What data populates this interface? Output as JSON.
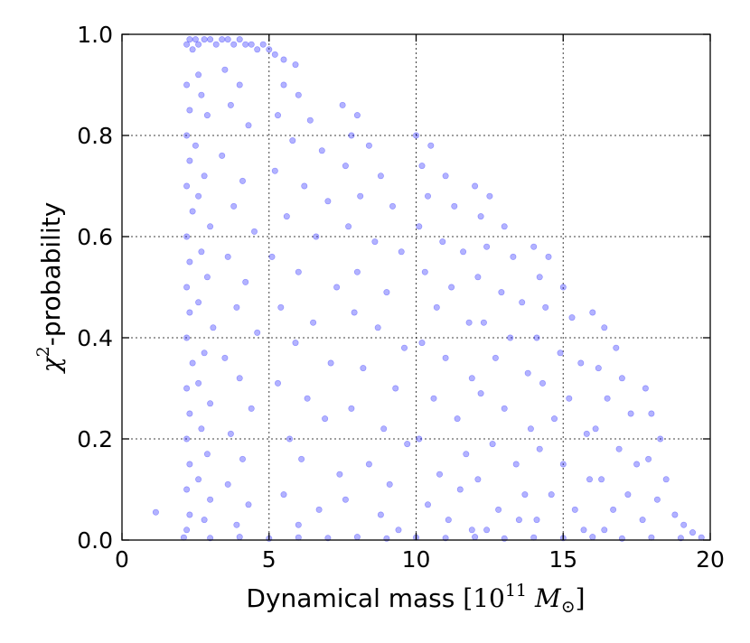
{
  "chart_data": {
    "type": "scatter",
    "title": "",
    "xlabel": {
      "prefix": "Dynamical mass ",
      "open_bracket": "[",
      "base": "10",
      "exponent": "11",
      "symbol": "M",
      "subscript": "⊙",
      "close_bracket": "]"
    },
    "ylabel": {
      "symbol": "χ",
      "superscript": "2",
      "suffix": "-probability"
    },
    "xlim": [
      0,
      20
    ],
    "ylim": [
      0.0,
      1.0
    ],
    "x_ticks": [
      "0",
      "5",
      "10",
      "15",
      "20"
    ],
    "y_ticks": [
      "0.0",
      "0.2",
      "0.4",
      "0.6",
      "0.8",
      "1.0"
    ],
    "x_tick_values": [
      0,
      5,
      10,
      15,
      20
    ],
    "y_tick_values": [
      0.0,
      0.2,
      0.4,
      0.6,
      0.8,
      1.0
    ],
    "grid": true,
    "marker_color": "#0000ff",
    "points": [
      [
        1.15,
        0.055
      ],
      [
        2.2,
        0.98
      ],
      [
        2.3,
        0.99
      ],
      [
        2.4,
        0.97
      ],
      [
        2.5,
        0.99
      ],
      [
        2.6,
        0.98
      ],
      [
        2.8,
        0.99
      ],
      [
        3.0,
        0.99
      ],
      [
        3.2,
        0.98
      ],
      [
        3.4,
        0.99
      ],
      [
        3.6,
        0.99
      ],
      [
        3.8,
        0.98
      ],
      [
        4.0,
        0.99
      ],
      [
        4.2,
        0.98
      ],
      [
        4.4,
        0.98
      ],
      [
        4.6,
        0.97
      ],
      [
        4.8,
        0.98
      ],
      [
        5.0,
        0.97
      ],
      [
        5.2,
        0.96
      ],
      [
        5.5,
        0.95
      ],
      [
        5.9,
        0.94
      ],
      [
        2.2,
        0.9
      ],
      [
        2.3,
        0.85
      ],
      [
        2.2,
        0.8
      ],
      [
        2.3,
        0.75
      ],
      [
        2.2,
        0.7
      ],
      [
        2.4,
        0.65
      ],
      [
        2.2,
        0.6
      ],
      [
        2.3,
        0.55
      ],
      [
        2.2,
        0.5
      ],
      [
        2.3,
        0.45
      ],
      [
        2.2,
        0.4
      ],
      [
        2.4,
        0.35
      ],
      [
        2.2,
        0.3
      ],
      [
        2.3,
        0.25
      ],
      [
        2.2,
        0.2
      ],
      [
        2.3,
        0.15
      ],
      [
        2.2,
        0.1
      ],
      [
        2.3,
        0.05
      ],
      [
        2.2,
        0.02
      ],
      [
        2.6,
        0.92
      ],
      [
        2.7,
        0.88
      ],
      [
        2.9,
        0.84
      ],
      [
        2.5,
        0.78
      ],
      [
        2.8,
        0.72
      ],
      [
        2.6,
        0.68
      ],
      [
        3.0,
        0.62
      ],
      [
        2.7,
        0.57
      ],
      [
        2.9,
        0.52
      ],
      [
        2.6,
        0.47
      ],
      [
        3.1,
        0.42
      ],
      [
        2.8,
        0.37
      ],
      [
        2.6,
        0.31
      ],
      [
        3.0,
        0.27
      ],
      [
        2.7,
        0.22
      ],
      [
        2.9,
        0.17
      ],
      [
        2.6,
        0.12
      ],
      [
        3.0,
        0.08
      ],
      [
        2.8,
        0.04
      ],
      [
        3.5,
        0.93
      ],
      [
        4.0,
        0.9
      ],
      [
        3.7,
        0.86
      ],
      [
        4.3,
        0.82
      ],
      [
        3.4,
        0.76
      ],
      [
        4.1,
        0.71
      ],
      [
        3.8,
        0.66
      ],
      [
        4.5,
        0.61
      ],
      [
        3.6,
        0.56
      ],
      [
        4.2,
        0.51
      ],
      [
        3.9,
        0.46
      ],
      [
        4.6,
        0.41
      ],
      [
        3.5,
        0.36
      ],
      [
        4.0,
        0.32
      ],
      [
        4.4,
        0.26
      ],
      [
        3.7,
        0.21
      ],
      [
        4.1,
        0.16
      ],
      [
        3.6,
        0.11
      ],
      [
        4.3,
        0.07
      ],
      [
        3.9,
        0.03
      ],
      [
        5.5,
        0.9
      ],
      [
        6.0,
        0.88
      ],
      [
        5.3,
        0.84
      ],
      [
        6.4,
        0.83
      ],
      [
        5.8,
        0.79
      ],
      [
        6.8,
        0.77
      ],
      [
        5.2,
        0.73
      ],
      [
        6.2,
        0.7
      ],
      [
        7.0,
        0.67
      ],
      [
        5.6,
        0.64
      ],
      [
        6.6,
        0.6
      ],
      [
        5.1,
        0.56
      ],
      [
        6.0,
        0.53
      ],
      [
        7.3,
        0.5
      ],
      [
        5.4,
        0.46
      ],
      [
        6.5,
        0.43
      ],
      [
        5.9,
        0.39
      ],
      [
        7.1,
        0.35
      ],
      [
        5.3,
        0.31
      ],
      [
        6.3,
        0.28
      ],
      [
        6.9,
        0.24
      ],
      [
        5.7,
        0.2
      ],
      [
        6.1,
        0.16
      ],
      [
        7.4,
        0.13
      ],
      [
        5.5,
        0.09
      ],
      [
        6.7,
        0.06
      ],
      [
        6.0,
        0.03
      ],
      [
        7.5,
        0.86
      ],
      [
        8.0,
        0.84
      ],
      [
        7.8,
        0.8
      ],
      [
        8.4,
        0.78
      ],
      [
        7.6,
        0.74
      ],
      [
        8.8,
        0.72
      ],
      [
        8.1,
        0.68
      ],
      [
        9.2,
        0.66
      ],
      [
        7.7,
        0.62
      ],
      [
        8.6,
        0.59
      ],
      [
        9.5,
        0.57
      ],
      [
        8.0,
        0.53
      ],
      [
        9.0,
        0.49
      ],
      [
        7.9,
        0.45
      ],
      [
        8.7,
        0.42
      ],
      [
        9.6,
        0.38
      ],
      [
        8.2,
        0.34
      ],
      [
        9.3,
        0.3
      ],
      [
        7.8,
        0.26
      ],
      [
        8.9,
        0.22
      ],
      [
        9.7,
        0.19
      ],
      [
        8.4,
        0.15
      ],
      [
        9.1,
        0.11
      ],
      [
        7.6,
        0.08
      ],
      [
        8.8,
        0.05
      ],
      [
        9.4,
        0.02
      ],
      [
        10.0,
        0.8
      ],
      [
        10.5,
        0.78
      ],
      [
        10.2,
        0.74
      ],
      [
        11.0,
        0.72
      ],
      [
        10.4,
        0.68
      ],
      [
        11.3,
        0.66
      ],
      [
        10.1,
        0.62
      ],
      [
        10.9,
        0.59
      ],
      [
        11.6,
        0.57
      ],
      [
        10.3,
        0.53
      ],
      [
        11.2,
        0.5
      ],
      [
        10.7,
        0.46
      ],
      [
        11.8,
        0.43
      ],
      [
        10.2,
        0.39
      ],
      [
        11.0,
        0.36
      ],
      [
        11.9,
        0.32
      ],
      [
        10.6,
        0.28
      ],
      [
        11.4,
        0.24
      ],
      [
        10.1,
        0.2
      ],
      [
        11.7,
        0.17
      ],
      [
        10.8,
        0.13
      ],
      [
        11.5,
        0.1
      ],
      [
        10.4,
        0.07
      ],
      [
        11.1,
        0.04
      ],
      [
        11.9,
        0.02
      ],
      [
        12.0,
        0.7
      ],
      [
        12.5,
        0.68
      ],
      [
        12.2,
        0.64
      ],
      [
        13.0,
        0.62
      ],
      [
        12.4,
        0.58
      ],
      [
        13.3,
        0.56
      ],
      [
        12.1,
        0.52
      ],
      [
        12.9,
        0.49
      ],
      [
        13.6,
        0.47
      ],
      [
        12.3,
        0.43
      ],
      [
        13.2,
        0.4
      ],
      [
        12.7,
        0.36
      ],
      [
        13.8,
        0.33
      ],
      [
        12.2,
        0.29
      ],
      [
        13.0,
        0.26
      ],
      [
        13.9,
        0.22
      ],
      [
        12.6,
        0.19
      ],
      [
        13.4,
        0.15
      ],
      [
        12.1,
        0.12
      ],
      [
        13.7,
        0.09
      ],
      [
        12.8,
        0.06
      ],
      [
        13.5,
        0.04
      ],
      [
        12.4,
        0.02
      ],
      [
        14.0,
        0.58
      ],
      [
        14.5,
        0.56
      ],
      [
        14.2,
        0.52
      ],
      [
        15.0,
        0.5
      ],
      [
        14.4,
        0.46
      ],
      [
        15.3,
        0.44
      ],
      [
        14.1,
        0.4
      ],
      [
        14.9,
        0.37
      ],
      [
        15.6,
        0.35
      ],
      [
        14.3,
        0.31
      ],
      [
        15.2,
        0.28
      ],
      [
        14.7,
        0.24
      ],
      [
        15.8,
        0.21
      ],
      [
        14.2,
        0.18
      ],
      [
        15.0,
        0.15
      ],
      [
        15.9,
        0.12
      ],
      [
        14.6,
        0.09
      ],
      [
        15.4,
        0.06
      ],
      [
        14.1,
        0.04
      ],
      [
        15.7,
        0.02
      ],
      [
        16.0,
        0.45
      ],
      [
        16.4,
        0.42
      ],
      [
        16.8,
        0.38
      ],
      [
        16.2,
        0.34
      ],
      [
        17.0,
        0.32
      ],
      [
        16.5,
        0.28
      ],
      [
        17.3,
        0.25
      ],
      [
        16.1,
        0.22
      ],
      [
        16.9,
        0.18
      ],
      [
        17.5,
        0.15
      ],
      [
        16.3,
        0.12
      ],
      [
        17.2,
        0.09
      ],
      [
        16.7,
        0.06
      ],
      [
        17.7,
        0.04
      ],
      [
        16.4,
        0.02
      ],
      [
        17.8,
        0.3
      ],
      [
        18.0,
        0.25
      ],
      [
        18.3,
        0.2
      ],
      [
        17.9,
        0.16
      ],
      [
        18.5,
        0.12
      ],
      [
        18.2,
        0.08
      ],
      [
        18.8,
        0.05
      ],
      [
        19.1,
        0.03
      ],
      [
        19.4,
        0.015
      ],
      [
        19.7,
        0.005
      ],
      [
        2.1,
        0.005
      ],
      [
        3.0,
        0.004
      ],
      [
        4.0,
        0.006
      ],
      [
        5.0,
        0.003
      ],
      [
        6.0,
        0.005
      ],
      [
        7.0,
        0.004
      ],
      [
        8.0,
        0.006
      ],
      [
        9.0,
        0.003
      ],
      [
        10.0,
        0.005
      ],
      [
        11.0,
        0.004
      ],
      [
        12.0,
        0.006
      ],
      [
        13.0,
        0.003
      ],
      [
        14.0,
        0.005
      ],
      [
        15.0,
        0.004
      ],
      [
        16.0,
        0.006
      ],
      [
        17.0,
        0.003
      ],
      [
        18.0,
        0.005
      ],
      [
        19.0,
        0.004
      ]
    ]
  }
}
